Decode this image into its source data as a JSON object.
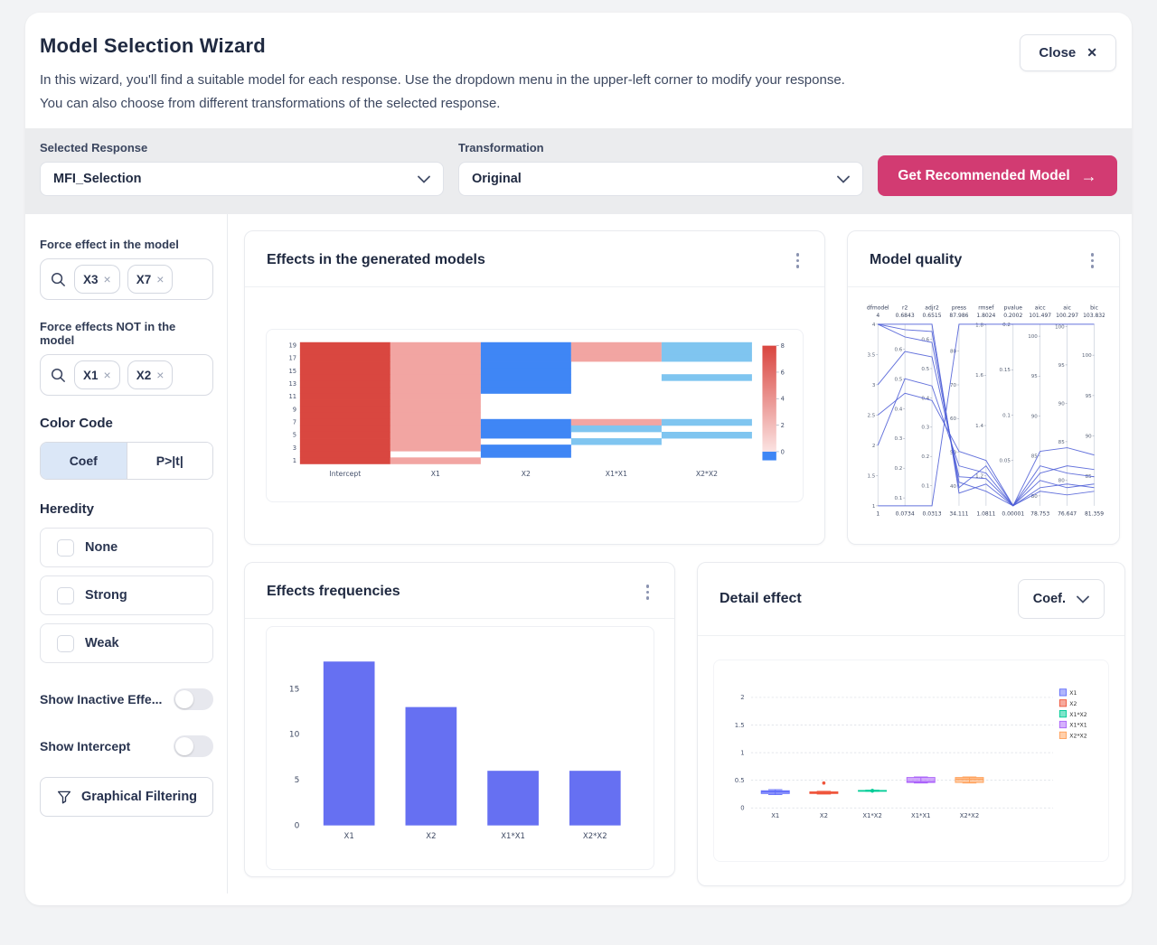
{
  "icons": {
    "arrow_right": "→",
    "chip_remove": "×",
    "close": "✕"
  },
  "header": {
    "title": "Model Selection Wizard",
    "description_line1": "In this wizard, you'll find a suitable model for each response. Use the dropdown menu in the upper-left corner to modify your response.",
    "description_line2": "You can also choose from different transformations of the selected response.",
    "close_label": "Close"
  },
  "toolbar": {
    "selected_response": {
      "label": "Selected Response",
      "value": "MFI_Selection"
    },
    "transformation": {
      "label": "Transformation",
      "value": "Original"
    },
    "cta_label": "Get Recommended Model",
    "cta_color": "#d23b72"
  },
  "sidebar": {
    "force_in": {
      "label": "Force effect in the model",
      "chips": [
        "X3",
        "X7"
      ]
    },
    "force_out": {
      "label": "Force effects NOT in the model",
      "chips": [
        "X1",
        "X2"
      ]
    },
    "color_code": {
      "label": "Color Code",
      "options": [
        "Coef",
        "P>|t|"
      ],
      "selected": "Coef"
    },
    "heredity": {
      "label": "Heredity",
      "options": [
        {
          "label": "None",
          "checked": false
        },
        {
          "label": "Strong",
          "checked": false
        },
        {
          "label": "Weak",
          "checked": false
        }
      ]
    },
    "show_inactive": {
      "label": "Show Inactive Effe...",
      "on": false
    },
    "show_intercept": {
      "label": "Show Intercept",
      "on": false
    },
    "graphical_filtering_label": "Graphical Filtering"
  },
  "cards": {
    "effects_models_title": "Effects in the generated models",
    "model_quality_title": "Model quality",
    "effects_frequencies_title": "Effects frequencies",
    "detail_effect_title": "Detail effect",
    "detail_effect_selector": "Coef."
  },
  "chart_data": [
    {
      "type": "heatmap",
      "title": "Effects in the generated models",
      "x_categories": [
        "Intercept",
        "X1",
        "X2",
        "X1*X1",
        "X2*X2"
      ],
      "y_tick_labels": [
        19,
        17,
        15,
        13,
        11,
        9,
        7,
        5,
        3,
        1
      ],
      "row_count": 19,
      "colorbar": {
        "ticks": [
          8,
          6,
          4,
          2,
          0
        ],
        "gradient_top": "#d9453f",
        "gradient_bottom": "#fbe3e2",
        "below_zero": "#3f86f5"
      },
      "cell_colors": {
        "R": "#d94740",
        "p": "#f2a5a2",
        "B": "#3f86f5",
        "b": "#7fc5f0",
        "w": "#ffffff"
      },
      "grid": [
        [
          "R",
          "p",
          "B",
          "p",
          "b"
        ],
        [
          "R",
          "p",
          "B",
          "p",
          "b"
        ],
        [
          "R",
          "p",
          "B",
          "p",
          "b"
        ],
        [
          "R",
          "p",
          "B",
          "w",
          "w"
        ],
        [
          "R",
          "p",
          "B",
          "w",
          "w"
        ],
        [
          "R",
          "p",
          "B",
          "w",
          "b"
        ],
        [
          "R",
          "p",
          "B",
          "w",
          "w"
        ],
        [
          "R",
          "p",
          "B",
          "w",
          "w"
        ],
        [
          "R",
          "p",
          "w",
          "w",
          "w"
        ],
        [
          "R",
          "p",
          "w",
          "w",
          "w"
        ],
        [
          "R",
          "p",
          "w",
          "w",
          "w"
        ],
        [
          "R",
          "p",
          "w",
          "w",
          "w"
        ],
        [
          "R",
          "p",
          "B",
          "p",
          "b"
        ],
        [
          "R",
          "p",
          "B",
          "b",
          "w"
        ],
        [
          "R",
          "p",
          "B",
          "w",
          "b"
        ],
        [
          "R",
          "p",
          "w",
          "b",
          "w"
        ],
        [
          "R",
          "p",
          "B",
          "w",
          "w"
        ],
        [
          "R",
          "w",
          "B",
          "w",
          "w"
        ],
        [
          "R",
          "p",
          "w",
          "w",
          "w"
        ]
      ]
    },
    {
      "type": "parallel_coordinates",
      "title": "Model quality",
      "line_color": "#4a5bd6",
      "axes": [
        {
          "name": "dfmodel",
          "max_label": "4",
          "min_label": "1",
          "max": 4,
          "min": 1,
          "ticks": [
            4,
            3.5,
            3,
            2.5,
            2,
            1.5,
            1
          ]
        },
        {
          "name": "r2",
          "max_label": "0.6843",
          "min_label": "0.0734",
          "max": 0.6843,
          "min": 0.0734,
          "ticks": [
            0.6,
            0.5,
            0.4,
            0.3,
            0.2,
            0.1
          ]
        },
        {
          "name": "adjr2",
          "max_label": "0.6515",
          "min_label": "0.0313",
          "max": 0.6515,
          "min": 0.0313,
          "ticks": [
            0.6,
            0.5,
            0.4,
            0.3,
            0.2,
            0.1
          ]
        },
        {
          "name": "press",
          "max_label": "87.986",
          "min_label": "34.111",
          "max": 87.986,
          "min": 34.111,
          "ticks": [
            80,
            70,
            60,
            50,
            40
          ]
        },
        {
          "name": "rmsef",
          "max_label": "1.8024",
          "min_label": "1.0811",
          "max": 1.8024,
          "min": 1.0811,
          "ticks": [
            1.8,
            1.6,
            1.4,
            1.2
          ]
        },
        {
          "name": "pvalue",
          "max_label": "0.2002",
          "min_label": "0.00001",
          "max": 0.2002,
          "min": 1e-05,
          "ticks": [
            0.2,
            0.15,
            0.1,
            0.05
          ]
        },
        {
          "name": "aicc",
          "max_label": "101.497",
          "min_label": "78.753",
          "max": 101.497,
          "min": 78.753,
          "ticks": [
            100,
            95,
            90,
            85,
            80
          ]
        },
        {
          "name": "aic",
          "max_label": "100.297",
          "min_label": "76.647",
          "max": 100.297,
          "min": 76.647,
          "ticks": [
            100,
            95,
            90,
            85,
            80
          ]
        },
        {
          "name": "bic",
          "max_label": "103.832",
          "min_label": "81.359",
          "max": 103.832,
          "min": 81.359,
          "ticks": [
            100,
            95,
            90,
            85
          ]
        }
      ],
      "lines_normalized": [
        [
          0,
          0,
          0,
          1,
          1,
          1,
          1,
          1,
          1
        ],
        [
          1,
          1,
          1,
          0.07,
          0.12,
          0,
          0.1,
          0.12,
          0.1
        ],
        [
          1,
          0.97,
          0.96,
          0.1,
          0.22,
          0.001,
          0.22,
          0.18,
          0.16
        ],
        [
          1,
          0.93,
          0.9,
          0.13,
          0.08,
          0,
          0.3,
          0.32,
          0.28
        ],
        [
          0.667,
          0.85,
          0.82,
          0.16,
          0.15,
          0.002,
          0.14,
          0.1,
          0.12
        ],
        [
          0.333,
          0.7,
          0.66,
          0.22,
          0.18,
          0,
          0.18,
          0.22,
          0.2
        ],
        [
          0.5,
          0.62,
          0.58,
          0.3,
          0.25,
          0.001,
          0.08,
          0.06,
          0.08
        ]
      ]
    },
    {
      "type": "bar",
      "title": "Effects frequencies",
      "categories": [
        "X1",
        "X2",
        "X1*X1",
        "X2*X2"
      ],
      "values": [
        18,
        13,
        6,
        6
      ],
      "yticks": [
        0,
        5,
        10,
        15
      ],
      "ylim": [
        0,
        19.5
      ],
      "xlabel": "",
      "ylabel": "",
      "bar_color": "#6670f2"
    },
    {
      "type": "box",
      "title": "Detail effect",
      "categories": [
        "X1",
        "X2",
        "X1*X2",
        "X1*X1",
        "X2*X2"
      ],
      "yticks": [
        0,
        0.5,
        1,
        1.5,
        2
      ],
      "ylim": [
        0,
        2.3
      ],
      "legend_position": "right",
      "legend": [
        "X1",
        "X2",
        "X1*X2",
        "X1*X1",
        "X2*X2"
      ],
      "series": [
        {
          "name": "X1",
          "color": "#636efa",
          "low": 0.24,
          "q1": 0.26,
          "median": 0.29,
          "q3": 0.31,
          "high": 0.33
        },
        {
          "name": "X2",
          "color": "#ef553b",
          "low": 0.25,
          "q1": 0.26,
          "median": 0.27,
          "q3": 0.29,
          "high": 0.3,
          "outliers": [
            0.45
          ]
        },
        {
          "name": "X1*X2",
          "color": "#00cc96",
          "low": 0.3,
          "q1": 0.305,
          "median": 0.31,
          "q3": 0.315,
          "high": 0.32,
          "point": 0.31
        },
        {
          "name": "X1*X1",
          "color": "#ab63fa",
          "low": 0.45,
          "q1": 0.46,
          "median": 0.47,
          "q3": 0.55,
          "high": 0.56
        },
        {
          "name": "X2*X2",
          "color": "#ffa15a",
          "low": 0.45,
          "q1": 0.46,
          "median": 0.52,
          "q3": 0.55,
          "high": 0.56
        }
      ]
    }
  ]
}
